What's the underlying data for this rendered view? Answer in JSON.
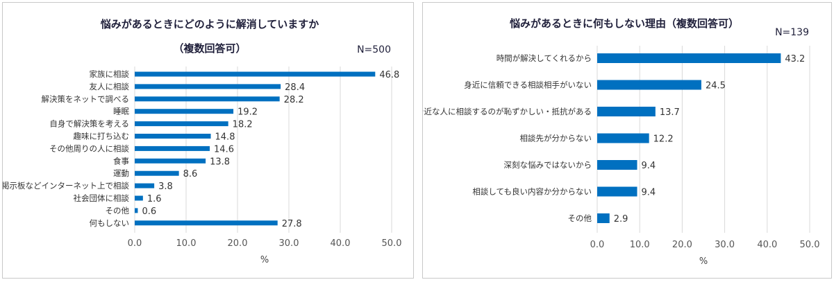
{
  "chart_data": [
    {
      "type": "bar",
      "orientation": "horizontal",
      "title_lines": [
        "悩みがあるときにどのように解消していますか",
        "（複数回答可）"
      ],
      "n_label": "N=500",
      "categories": [
        "家族に相談",
        "友人に相談",
        "解決策をネットで調べる",
        "睡眠",
        "自身で解決策を考える",
        "趣味に打ち込む",
        "その他周りの人に相談",
        "食事",
        "運動",
        "掲示板などインターネット上で相談",
        "社会団体に相談",
        "その他",
        "何もしない"
      ],
      "values": [
        46.8,
        28.4,
        28.2,
        19.2,
        18.2,
        14.8,
        14.6,
        13.8,
        8.6,
        3.8,
        1.6,
        0.6,
        27.8
      ],
      "value_labels": [
        "46.8",
        "28.4",
        "28.2",
        "19.2",
        "18.2",
        "14.8",
        "14.6",
        "13.8",
        "8.6",
        "3.8",
        "1.6",
        "0.6",
        "27.8"
      ],
      "xlabel": "%",
      "xlim": [
        0,
        50
      ],
      "xticks": [
        "0.0",
        "10.0",
        "20.0",
        "30.0",
        "40.0",
        "50.0"
      ],
      "color": "#0070c0",
      "grid": true
    },
    {
      "type": "bar",
      "orientation": "horizontal",
      "title_lines": [
        "悩みがあるときに何もしない理由（複数回答可）"
      ],
      "n_label": "N=139",
      "categories": [
        "時間が解決してくれるから",
        "身近に信頼できる相談相手がいない",
        "身近な人に相談するのが恥ずかしい・抵抗がある",
        "相談先が分からない",
        "深刻な悩みではないから",
        "相談しても良い内容か分からない",
        "その他"
      ],
      "values": [
        43.2,
        24.5,
        13.7,
        12.2,
        9.4,
        9.4,
        2.9
      ],
      "value_labels": [
        "43.2",
        "24.5",
        "13.7",
        "12.2",
        "9.4",
        "9.4",
        "2.9"
      ],
      "xlabel": "%",
      "xlim": [
        0,
        50
      ],
      "xticks": [
        "0.0",
        "10.0",
        "20.0",
        "30.0",
        "40.0",
        "50.0"
      ],
      "color": "#0070c0",
      "grid": true
    }
  ]
}
